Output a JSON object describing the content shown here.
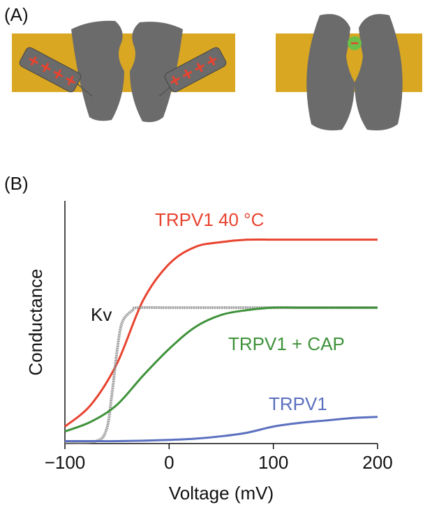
{
  "panel_labels": [
    "(A)",
    "(B)"
  ],
  "chart_data": {
    "type": "line",
    "xlabel": "Voltage (mV)",
    "ylabel": "Conductance",
    "xlim": [
      -100,
      200
    ],
    "ylim": [
      0,
      1
    ],
    "xticks": [
      {
        "value": -100,
        "label": "−100"
      },
      0,
      100,
      200
    ],
    "series": [
      {
        "name": "TRPV1 40 °C",
        "color": "#e8432f",
        "x": [
          -100,
          -75,
          -50,
          -25,
          0,
          25,
          50,
          75,
          100,
          125,
          150,
          175,
          200
        ],
        "values": [
          0.07,
          0.16,
          0.33,
          0.59,
          0.74,
          0.81,
          0.83,
          0.84,
          0.84,
          0.84,
          0.84,
          0.84,
          0.84
        ]
      },
      {
        "name": "Kv",
        "color": "#8c8c8c",
        "x": [
          -100,
          -70,
          -60,
          -55,
          -50,
          -45,
          -35,
          -30,
          0,
          50,
          100,
          150,
          200
        ],
        "values": [
          0.005,
          0.01,
          0.06,
          0.2,
          0.38,
          0.5,
          0.55,
          0.56,
          0.56,
          0.56,
          0.56,
          0.56,
          0.56
        ]
      },
      {
        "name": "TRPV1 + CAP",
        "color": "#3f923a",
        "x": [
          -100,
          -75,
          -50,
          -25,
          0,
          25,
          50,
          75,
          100,
          125,
          150,
          175,
          200
        ],
        "values": [
          0.05,
          0.09,
          0.16,
          0.28,
          0.39,
          0.48,
          0.53,
          0.55,
          0.56,
          0.56,
          0.56,
          0.56,
          0.56
        ]
      },
      {
        "name": "TRPV1",
        "color": "#5a6fbf",
        "x": [
          -100,
          -75,
          -50,
          -25,
          0,
          25,
          50,
          75,
          100,
          125,
          150,
          175,
          200
        ],
        "values": [
          0.01,
          0.01,
          0.01,
          0.012,
          0.015,
          0.02,
          0.03,
          0.045,
          0.07,
          0.085,
          0.095,
          0.105,
          0.11
        ]
      }
    ]
  }
}
